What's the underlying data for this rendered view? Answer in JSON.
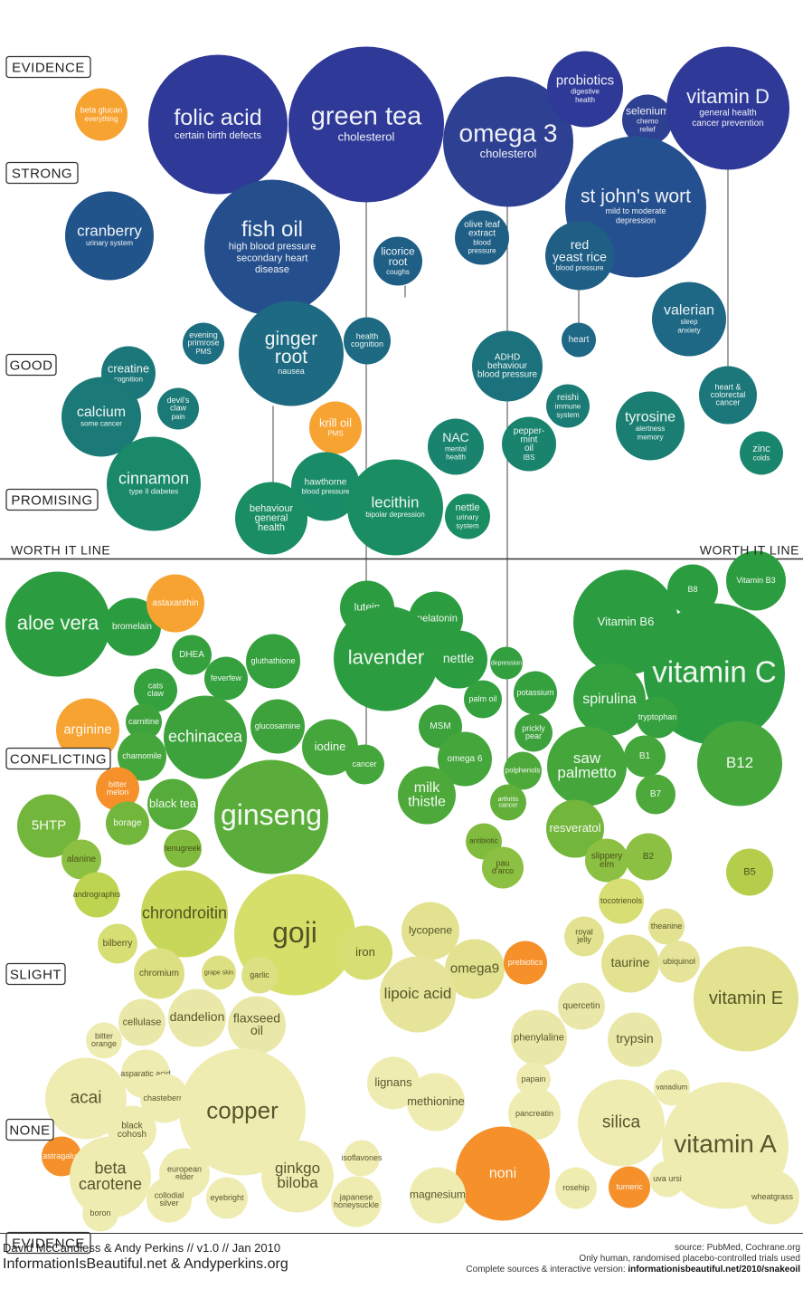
{
  "chart_data": {
    "type": "bubble",
    "y_axis": {
      "labels": [
        "EVIDENCE",
        "STRONG",
        "GOOD",
        "PROMISING",
        "CONFLICTING",
        "SLIGHT",
        "NONE",
        "EVIDENCE"
      ]
    },
    "threshold": {
      "left_label": "WORTH IT LINE",
      "right_label": "WORTH IT LINE"
    },
    "colors": {
      "strong": "#2e3a96",
      "strong_mid": "#25508f",
      "good": "#1e6785",
      "promising": "#18806f",
      "promising_green": "#1e9157",
      "conflicting": "#2b9e3f",
      "conflicting_light": "#6db53a",
      "slight": "#b7cf4a",
      "slight_light": "#e6e492",
      "none": "#efecb2",
      "highlight_orange": "#f7a332",
      "deep_orange": "#f5902a"
    },
    "bubbles": [
      {
        "name": "folic acid",
        "note": "certain birth defects",
        "level": "strong",
        "color": "#2f3a98"
      },
      {
        "name": "green tea",
        "note": "cholesterol",
        "level": "strong",
        "color": "#2f3a98"
      },
      {
        "name": "omega 3",
        "note": "cholesterol",
        "level": "strong",
        "color": "#2e4092"
      },
      {
        "name": "probiotics",
        "note": "digestive health",
        "level": "strong",
        "color": "#2f3a98"
      },
      {
        "name": "selenium",
        "note": "chemo relief",
        "level": "strong",
        "color": "#2e4092"
      },
      {
        "name": "vitamin D",
        "note": "general health cancer prevention",
        "level": "strong",
        "color": "#2f3a98"
      },
      {
        "name": "beta glucan",
        "note": "everything",
        "level": "strong",
        "color": "#f7a332"
      },
      {
        "name": "st john's wort",
        "note": "mild to moderate depression",
        "level": "strong",
        "color": "#25508f"
      },
      {
        "name": "fish oil",
        "note": "high blood pressure secondary heart disease",
        "level": "strong",
        "color": "#244f8c"
      },
      {
        "name": "cranberry",
        "note": "urinary system",
        "level": "strong",
        "color": "#22548c"
      },
      {
        "name": "olive leaf extract",
        "note": "blood pressure",
        "level": "good",
        "color": "#1f5f86"
      },
      {
        "name": "licorice root",
        "note": "coughs",
        "level": "good",
        "color": "#1f5f86"
      },
      {
        "name": "red yeast rice",
        "note": "blood pressure",
        "level": "good",
        "color": "#1f5f86"
      },
      {
        "name": "valerian",
        "note": "sleep anxiety",
        "level": "good",
        "color": "#1e6785"
      },
      {
        "name": "heart",
        "note": "",
        "level": "good",
        "color": "#1e6785"
      },
      {
        "name": "ginger root",
        "note": "nausea",
        "level": "good",
        "color": "#1d6a82"
      },
      {
        "name": "health cognition",
        "note": "",
        "level": "good",
        "color": "#1d6a82"
      },
      {
        "name": "evening primrose",
        "note": "PMS",
        "level": "good",
        "color": "#1d6e80"
      },
      {
        "name": "ADHD behaviour blood pressure",
        "note": "",
        "level": "good",
        "color": "#1c727c"
      },
      {
        "name": "heart & colorectal cancer",
        "note": "",
        "level": "good",
        "color": "#1b777a"
      },
      {
        "name": "creatine",
        "note": "cognition",
        "level": "good",
        "color": "#1b777a"
      },
      {
        "name": "calcium",
        "note": "some cancer",
        "level": "good",
        "color": "#1b7a77"
      },
      {
        "name": "devil's claw",
        "note": "pain",
        "level": "good",
        "color": "#1b7a77"
      },
      {
        "name": "krill oil",
        "note": "PMS",
        "level": "promising",
        "color": "#f7a332"
      },
      {
        "name": "reishi",
        "note": "immune system",
        "level": "good",
        "color": "#1a7c74"
      },
      {
        "name": "tyrosine",
        "note": "alertness memory",
        "level": "promising",
        "color": "#1a7f72"
      },
      {
        "name": "NAC",
        "note": "mental health",
        "level": "promising",
        "color": "#19836e"
      },
      {
        "name": "peppermint oil",
        "note": "IBS",
        "level": "promising",
        "color": "#19836e"
      },
      {
        "name": "zinc",
        "note": "colds",
        "level": "promising",
        "color": "#19856c"
      },
      {
        "name": "cinnamon",
        "note": "type II diabetes",
        "level": "promising",
        "color": "#198969"
      },
      {
        "name": "hawthorne",
        "note": "blood pressure",
        "level": "promising",
        "color": "#198b66"
      },
      {
        "name": "lecithin",
        "note": "bipolar depression",
        "level": "promising",
        "color": "#1a8d62"
      },
      {
        "name": "nettle",
        "note": "urinary system",
        "level": "promising",
        "color": "#1a8d62"
      },
      {
        "name": "behaviour general health",
        "note": "",
        "level": "promising",
        "color": "#1a8d62"
      },
      {
        "name": "aloe vera",
        "level": "conflicting",
        "color": "#2c9c40"
      },
      {
        "name": "bromelain",
        "level": "conflicting",
        "color": "#2c9c40"
      },
      {
        "name": "astaxanthin",
        "level": "conflicting",
        "color": "#f7a332"
      },
      {
        "name": "lutein",
        "level": "conflicting",
        "color": "#2c9c40"
      },
      {
        "name": "melatonin",
        "level": "conflicting",
        "color": "#2c9c40"
      },
      {
        "name": "lavender",
        "level": "conflicting",
        "color": "#2c9c40"
      },
      {
        "name": "nettle",
        "level": "conflicting",
        "color": "#2c9c40"
      },
      {
        "name": "depression",
        "level": "conflicting",
        "color": "#33a040"
      },
      {
        "name": "Vitamin B6",
        "level": "conflicting",
        "color": "#2c9c40"
      },
      {
        "name": "B8",
        "level": "conflicting",
        "color": "#2c9c40"
      },
      {
        "name": "Vitamin B3",
        "level": "conflicting",
        "color": "#2c9c40"
      },
      {
        "name": "vitamin C",
        "level": "conflicting",
        "color": "#2c9c40"
      },
      {
        "name": "DHEA",
        "level": "conflicting",
        "color": "#35a03e"
      },
      {
        "name": "gluthathione",
        "level": "conflicting",
        "color": "#35a03e"
      },
      {
        "name": "feverfew",
        "level": "conflicting",
        "color": "#35a03e"
      },
      {
        "name": "cats claw",
        "level": "conflicting",
        "color": "#35a03e"
      },
      {
        "name": "palm oil",
        "level": "conflicting",
        "color": "#35a03e"
      },
      {
        "name": "potassium",
        "level": "conflicting",
        "color": "#35a03e"
      },
      {
        "name": "spirulina",
        "level": "conflicting",
        "color": "#35a03e"
      },
      {
        "name": "tryptophan",
        "level": "conflicting",
        "color": "#35a03e"
      },
      {
        "name": "arginine",
        "level": "conflicting",
        "color": "#f7a332"
      },
      {
        "name": "carnitine",
        "level": "conflicting",
        "color": "#3da23c"
      },
      {
        "name": "echinacea",
        "level": "conflicting",
        "color": "#3da23c"
      },
      {
        "name": "glucosamine",
        "level": "conflicting",
        "color": "#3da23c"
      },
      {
        "name": "MSM",
        "level": "conflicting",
        "color": "#3da23c"
      },
      {
        "name": "prickly pear",
        "level": "conflicting",
        "color": "#3da23c"
      },
      {
        "name": "chamomile",
        "level": "conflicting",
        "color": "#44a63b"
      },
      {
        "name": "iodine",
        "level": "conflicting",
        "color": "#44a63b"
      },
      {
        "name": "cancer",
        "level": "conflicting",
        "color": "#44a63b"
      },
      {
        "name": "omega 6",
        "level": "conflicting",
        "color": "#44a63b"
      },
      {
        "name": "saw palmetto",
        "level": "conflicting",
        "color": "#44a63b"
      },
      {
        "name": "B1",
        "level": "conflicting",
        "color": "#44a63b"
      },
      {
        "name": "B12",
        "level": "conflicting",
        "color": "#44a63b"
      },
      {
        "name": "bitter melon",
        "level": "conflicting",
        "color": "#f5902a"
      },
      {
        "name": "polphenols",
        "level": "conflicting",
        "color": "#4da93a"
      },
      {
        "name": "milk thistle",
        "level": "conflicting",
        "color": "#4da93a"
      },
      {
        "name": "arthritis cancer",
        "level": "conflicting",
        "color": "#62b03a"
      },
      {
        "name": "B7",
        "level": "conflicting",
        "color": "#4da93a"
      },
      {
        "name": "black tea",
        "level": "conflicting",
        "color": "#55ac3a"
      },
      {
        "name": "ginseng",
        "level": "conflicting",
        "color": "#5aad3a"
      },
      {
        "name": "5HTP",
        "level": "conflicting",
        "color": "#72b63c"
      },
      {
        "name": "borage",
        "level": "conflicting",
        "color": "#72b63c"
      },
      {
        "name": "resveratol",
        "level": "conflicting",
        "color": "#72b63c"
      },
      {
        "name": "antibiotic",
        "level": "conflicting",
        "color": "#80bb3e"
      },
      {
        "name": "tenugreek",
        "level": "conflicting",
        "color": "#80bb3e"
      },
      {
        "name": "alanine",
        "level": "conflicting",
        "color": "#8cc042"
      },
      {
        "name": "pau d'arco",
        "level": "conflicting",
        "color": "#8cc042"
      },
      {
        "name": "slippery elm",
        "level": "conflicting",
        "color": "#8cc042"
      },
      {
        "name": "B2",
        "level": "conflicting",
        "color": "#8cc042"
      },
      {
        "name": "B5",
        "level": "conflicting",
        "color": "#b4ce4c"
      },
      {
        "name": "andrographis",
        "level": "slight",
        "color": "#bcd450"
      },
      {
        "name": "chrondroitin",
        "level": "slight",
        "color": "#c8d75a"
      },
      {
        "name": "tocotrienols",
        "level": "slight",
        "color": "#d6de74"
      },
      {
        "name": "goji",
        "level": "slight",
        "color": "#d6df6a"
      },
      {
        "name": "theanine",
        "level": "slight",
        "color": "#e2e290"
      },
      {
        "name": "bilberry",
        "level": "slight",
        "color": "#d6de74"
      },
      {
        "name": "iron",
        "level": "slight",
        "color": "#d6de74"
      },
      {
        "name": "lycopene",
        "level": "slight",
        "color": "#e2e290"
      },
      {
        "name": "royal jelly",
        "level": "slight",
        "color": "#e2e290"
      },
      {
        "name": "taurine",
        "level": "slight",
        "color": "#e2e290"
      },
      {
        "name": "ubiquinol",
        "level": "slight",
        "color": "#e6e49a"
      },
      {
        "name": "chromium",
        "level": "slight",
        "color": "#dde082"
      },
      {
        "name": "grape skin",
        "level": "slight",
        "color": "#dde082"
      },
      {
        "name": "garlic",
        "level": "slight",
        "color": "#dde082"
      },
      {
        "name": "omega9",
        "level": "slight",
        "color": "#e2e290"
      },
      {
        "name": "prebiotics",
        "level": "slight",
        "color": "#f5902a"
      },
      {
        "name": "lipoic acid",
        "level": "slight",
        "color": "#e6e49a"
      },
      {
        "name": "vitamin E",
        "level": "slight",
        "color": "#e2e290"
      },
      {
        "name": "quercetin",
        "level": "slight",
        "color": "#eae8a8"
      },
      {
        "name": "cellulase",
        "level": "slight",
        "color": "#eae8a8"
      },
      {
        "name": "dandelion",
        "level": "slight",
        "color": "#eae8a8"
      },
      {
        "name": "flaxseed oil",
        "level": "slight",
        "color": "#eae8a8"
      },
      {
        "name": "phenylaline",
        "level": "slight",
        "color": "#eae8a8"
      },
      {
        "name": "trypsin",
        "level": "slight",
        "color": "#eae8a8"
      },
      {
        "name": "bitter orange",
        "level": "none",
        "color": "#efecb2"
      },
      {
        "name": "asparatic acid",
        "level": "none",
        "color": "#efecb2"
      },
      {
        "name": "lignans",
        "level": "none",
        "color": "#efecb2"
      },
      {
        "name": "papain",
        "level": "none",
        "color": "#efecb2"
      },
      {
        "name": "vanadium",
        "level": "none",
        "color": "#efecb2"
      },
      {
        "name": "acai",
        "level": "none",
        "color": "#efecb2"
      },
      {
        "name": "chasteberry",
        "level": "none",
        "color": "#efecb2"
      },
      {
        "name": "copper",
        "level": "none",
        "color": "#efecb2"
      },
      {
        "name": "methionine",
        "level": "none",
        "color": "#efecb2"
      },
      {
        "name": "pancreatin",
        "level": "none",
        "color": "#efecb2"
      },
      {
        "name": "silica",
        "level": "none",
        "color": "#efecb2"
      },
      {
        "name": "black cohosh",
        "level": "none",
        "color": "#efecb2"
      },
      {
        "name": "vitamin A",
        "level": "none",
        "color": "#efecb2"
      },
      {
        "name": "astragalus",
        "level": "none",
        "color": "#f5902a"
      },
      {
        "name": "beta carotene",
        "level": "none",
        "color": "#efecb2"
      },
      {
        "name": "european elder",
        "level": "none",
        "color": "#efecb2"
      },
      {
        "name": "ginkgo biloba",
        "level": "none",
        "color": "#efecb2"
      },
      {
        "name": "isoflavones",
        "level": "none",
        "color": "#efecb2"
      },
      {
        "name": "noni",
        "level": "none",
        "color": "#f5902a"
      },
      {
        "name": "collodial silver",
        "level": "none",
        "color": "#efecb2"
      },
      {
        "name": "eyebright",
        "level": "none",
        "color": "#efecb2"
      },
      {
        "name": "japanese honeysuckle",
        "level": "none",
        "color": "#efecb2"
      },
      {
        "name": "magnesium",
        "level": "none",
        "color": "#efecb2"
      },
      {
        "name": "rosehip",
        "level": "none",
        "color": "#efecb2"
      },
      {
        "name": "tumeric",
        "level": "none",
        "color": "#f5902a"
      },
      {
        "name": "uva ursi",
        "level": "none",
        "color": "#efecb2"
      },
      {
        "name": "wheatgrass",
        "level": "none",
        "color": "#efecb2"
      },
      {
        "name": "boron",
        "level": "none",
        "color": "#efecb2"
      }
    ]
  },
  "footer": {
    "credits": "David McCandless & Andy Perkins // v1.0 // Jan 2010",
    "website": "InformationIsBeautiful.net & Andyperkins.org",
    "source": "source: PubMed, Cochrane.org",
    "trials_note": "Only human, randomised placebo-controlled trials used",
    "complete_prefix": "Complete sources & interactive version:",
    "complete_url": "informationisbeautiful.net/2010/snakeoil"
  }
}
